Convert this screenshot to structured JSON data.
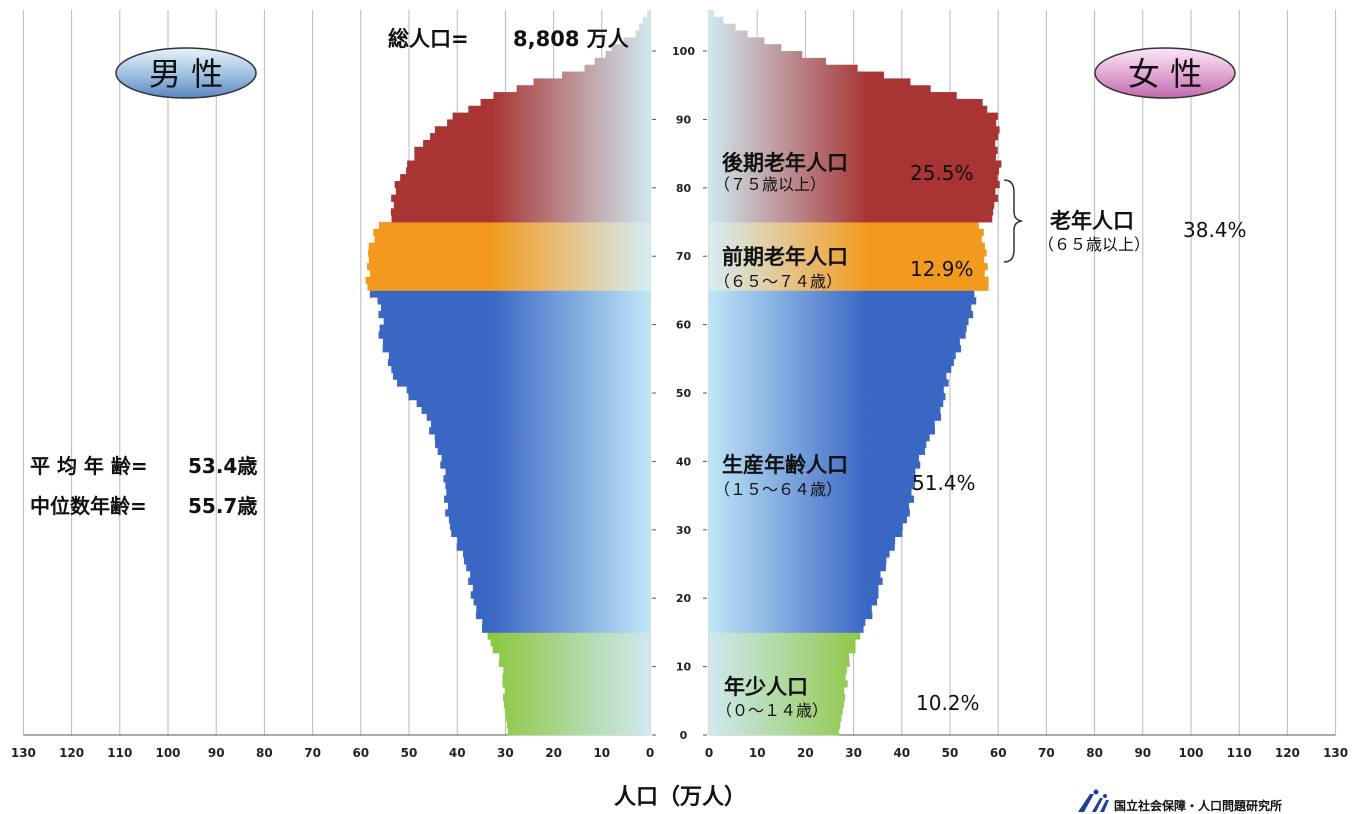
{
  "chart_data": {
    "type": "bar",
    "orientation": "horizontal-pyramid",
    "total_label": "総人口=",
    "total_value": "8,808 万人",
    "male_label": "男 性",
    "female_label": "女 性",
    "xlabel": "人口（万人）",
    "xticks_left": [
      "130",
      "120",
      "110",
      "100",
      "90",
      "80",
      "70",
      "60",
      "50",
      "40",
      "30",
      "20",
      "10",
      "0"
    ],
    "xticks_right": [
      "0",
      "10",
      "20",
      "30",
      "40",
      "50",
      "60",
      "70",
      "80",
      "90",
      "100",
      "110",
      "120",
      "130"
    ],
    "yticks": [
      "0",
      "10",
      "20",
      "30",
      "40",
      "50",
      "60",
      "70",
      "80",
      "90",
      "100"
    ],
    "xlim": [
      0,
      130
    ],
    "ylim": [
      0,
      106
    ],
    "grid": true,
    "mean_age_label": "平 均 年 齢=",
    "mean_age_value": "53.4歳",
    "median_age_label": "中位数年齢=",
    "median_age_value": "55.7歳",
    "annotations": {
      "late_elderly_label": "後期老年人口",
      "late_elderly_sub": "（７５歳以上）",
      "late_elderly_pct": "25.5%",
      "early_elderly_label": "前期老年人口",
      "early_elderly_sub": "（６５～７４歳）",
      "early_elderly_pct": "12.9%",
      "working_label": "生産年齢人口",
      "working_sub": "（１５～６４歳）",
      "working_pct": "51.4%",
      "youth_label": "年少人口",
      "youth_sub": "（０～１４歳）",
      "youth_pct": "10.2%",
      "elderly_label": "老年人口",
      "elderly_sub": "（６５歳以上）",
      "elderly_pct": "38.4%"
    },
    "source_label": "国立社会保障・人口問題研究所",
    "age_groups": [
      {
        "name": "年少人口",
        "range": [
          0,
          14
        ],
        "color_dark": "#8cc63f",
        "color_light": "#cfe8f2"
      },
      {
        "name": "生産年齢人口",
        "range": [
          15,
          64
        ],
        "color_dark": "#3a66c4",
        "color_light": "#bfe6f7"
      },
      {
        "name": "前期老年人口",
        "range": [
          65,
          74
        ],
        "color_dark": "#f39a1e",
        "color_light": "#d6edf4"
      },
      {
        "name": "後期老年人口",
        "range": [
          75,
          105
        ],
        "color_dark": "#a83434",
        "color_light": "#cfe8f0"
      }
    ],
    "male_knots": [
      [
        0,
        29.5
      ],
      [
        10,
        31.5
      ],
      [
        15,
        34
      ],
      [
        20,
        37
      ],
      [
        30,
        41
      ],
      [
        40,
        44
      ],
      [
        46,
        45.5
      ],
      [
        50,
        51
      ],
      [
        52,
        54
      ],
      [
        55,
        55
      ],
      [
        58,
        56
      ],
      [
        60,
        55
      ],
      [
        63,
        56
      ],
      [
        64,
        58
      ],
      [
        65,
        59
      ],
      [
        68,
        59
      ],
      [
        70,
        59
      ],
      [
        74,
        56
      ],
      [
        75,
        53
      ],
      [
        80,
        53
      ],
      [
        85,
        49
      ],
      [
        88,
        44
      ],
      [
        90,
        40
      ],
      [
        93,
        32
      ],
      [
        95,
        24
      ],
      [
        97,
        14
      ],
      [
        100,
        8
      ],
      [
        102,
        3
      ],
      [
        104,
        1.5
      ],
      [
        105,
        0.6
      ]
    ],
    "female_knots": [
      [
        0,
        27
      ],
      [
        10,
        29.5
      ],
      [
        15,
        31.5
      ],
      [
        20,
        35
      ],
      [
        30,
        40
      ],
      [
        40,
        44.5
      ],
      [
        50,
        49
      ],
      [
        52,
        50
      ],
      [
        55,
        52
      ],
      [
        60,
        53.5
      ],
      [
        64,
        55
      ],
      [
        65,
        58
      ],
      [
        68,
        58
      ],
      [
        70,
        58
      ],
      [
        74,
        56
      ],
      [
        75,
        58
      ],
      [
        80,
        60
      ],
      [
        83,
        61
      ],
      [
        85,
        60
      ],
      [
        88,
        60
      ],
      [
        90,
        59
      ],
      [
        92,
        56
      ],
      [
        94,
        46
      ],
      [
        96,
        37
      ],
      [
        98,
        25
      ],
      [
        100,
        15
      ],
      [
        102,
        8
      ],
      [
        104,
        3
      ],
      [
        105,
        1
      ]
    ]
  }
}
